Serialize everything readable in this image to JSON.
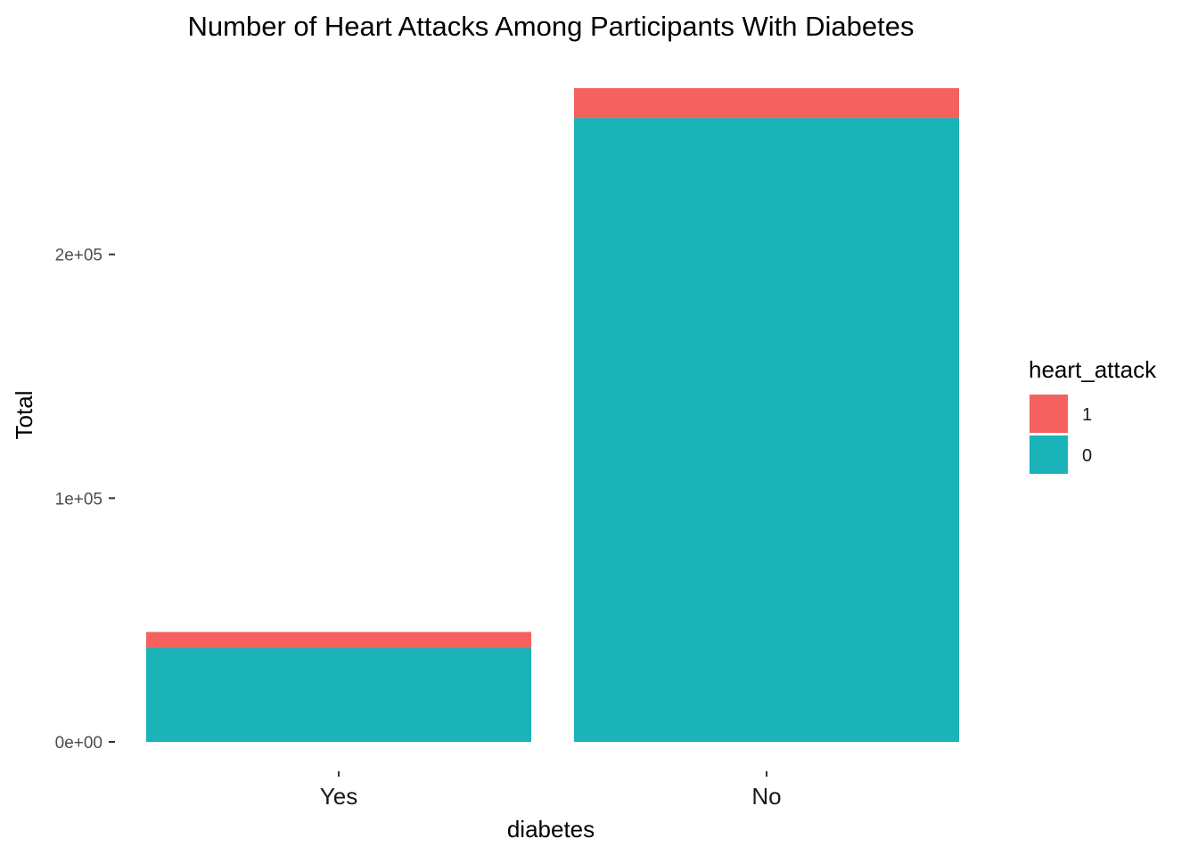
{
  "chart_data": {
    "type": "bar",
    "stacked": true,
    "title": "Number of Heart Attacks Among Participants With Diabetes",
    "xlabel": "diabetes",
    "ylabel": "Total",
    "categories": [
      "Yes",
      "No"
    ],
    "series": [
      {
        "name": "0",
        "color": "#19b3b8",
        "values": [
          38700,
          256000
        ]
      },
      {
        "name": "1",
        "color": "#f4615e",
        "values": [
          6400,
          12200
        ]
      }
    ],
    "yticks": [
      {
        "value": 0,
        "label": "0e+00"
      },
      {
        "value": 100000,
        "label": "1e+05"
      },
      {
        "value": 200000,
        "label": "2e+05"
      }
    ],
    "ylim": [
      0,
      268200
    ],
    "grid": false,
    "legend": {
      "title": "heart_attack",
      "placement": "right",
      "entries": [
        {
          "label": "1",
          "color": "#f4615e"
        },
        {
          "label": "0",
          "color": "#19b3b8"
        }
      ]
    }
  }
}
